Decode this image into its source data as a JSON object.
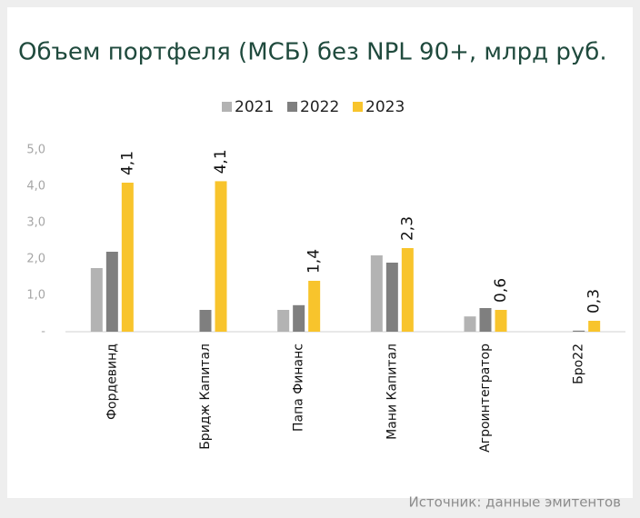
{
  "chart_data": {
    "type": "bar",
    "title": "Объем портфеля (МСБ) без NPL 90+, млрд руб.",
    "categories": [
      "Фордевинд",
      "Бридж Капитал",
      "Папа Финанс",
      "Мани Капитал",
      "Агроинтегратор",
      "Бро22"
    ],
    "series": [
      {
        "name": "2021",
        "color": "#b3b3b3",
        "values": [
          1.75,
          null,
          0.6,
          2.1,
          0.42,
          null
        ]
      },
      {
        "name": "2022",
        "color": "#7f7f7f",
        "values": [
          2.2,
          0.6,
          0.73,
          1.9,
          0.65,
          0.03
        ]
      },
      {
        "name": "2023",
        "color": "#f8c42c",
        "values": [
          4.1,
          4.14,
          1.4,
          2.3,
          0.6,
          0.3
        ],
        "value_labels": [
          "4,1",
          "4,1",
          "1,4",
          "2,3",
          "0,6",
          "0,3"
        ]
      }
    ],
    "ylim": [
      0,
      5
    ],
    "yticks": [
      {
        "value": 0,
        "label": "-"
      },
      {
        "value": 1,
        "label": "1,0"
      },
      {
        "value": 2,
        "label": "2,0"
      },
      {
        "value": 3,
        "label": "3,0"
      },
      {
        "value": 4,
        "label": "4,0"
      },
      {
        "value": 5,
        "label": "5,0"
      }
    ],
    "grid": false,
    "legend": "top",
    "source": "Источник: данные эмитентов"
  }
}
